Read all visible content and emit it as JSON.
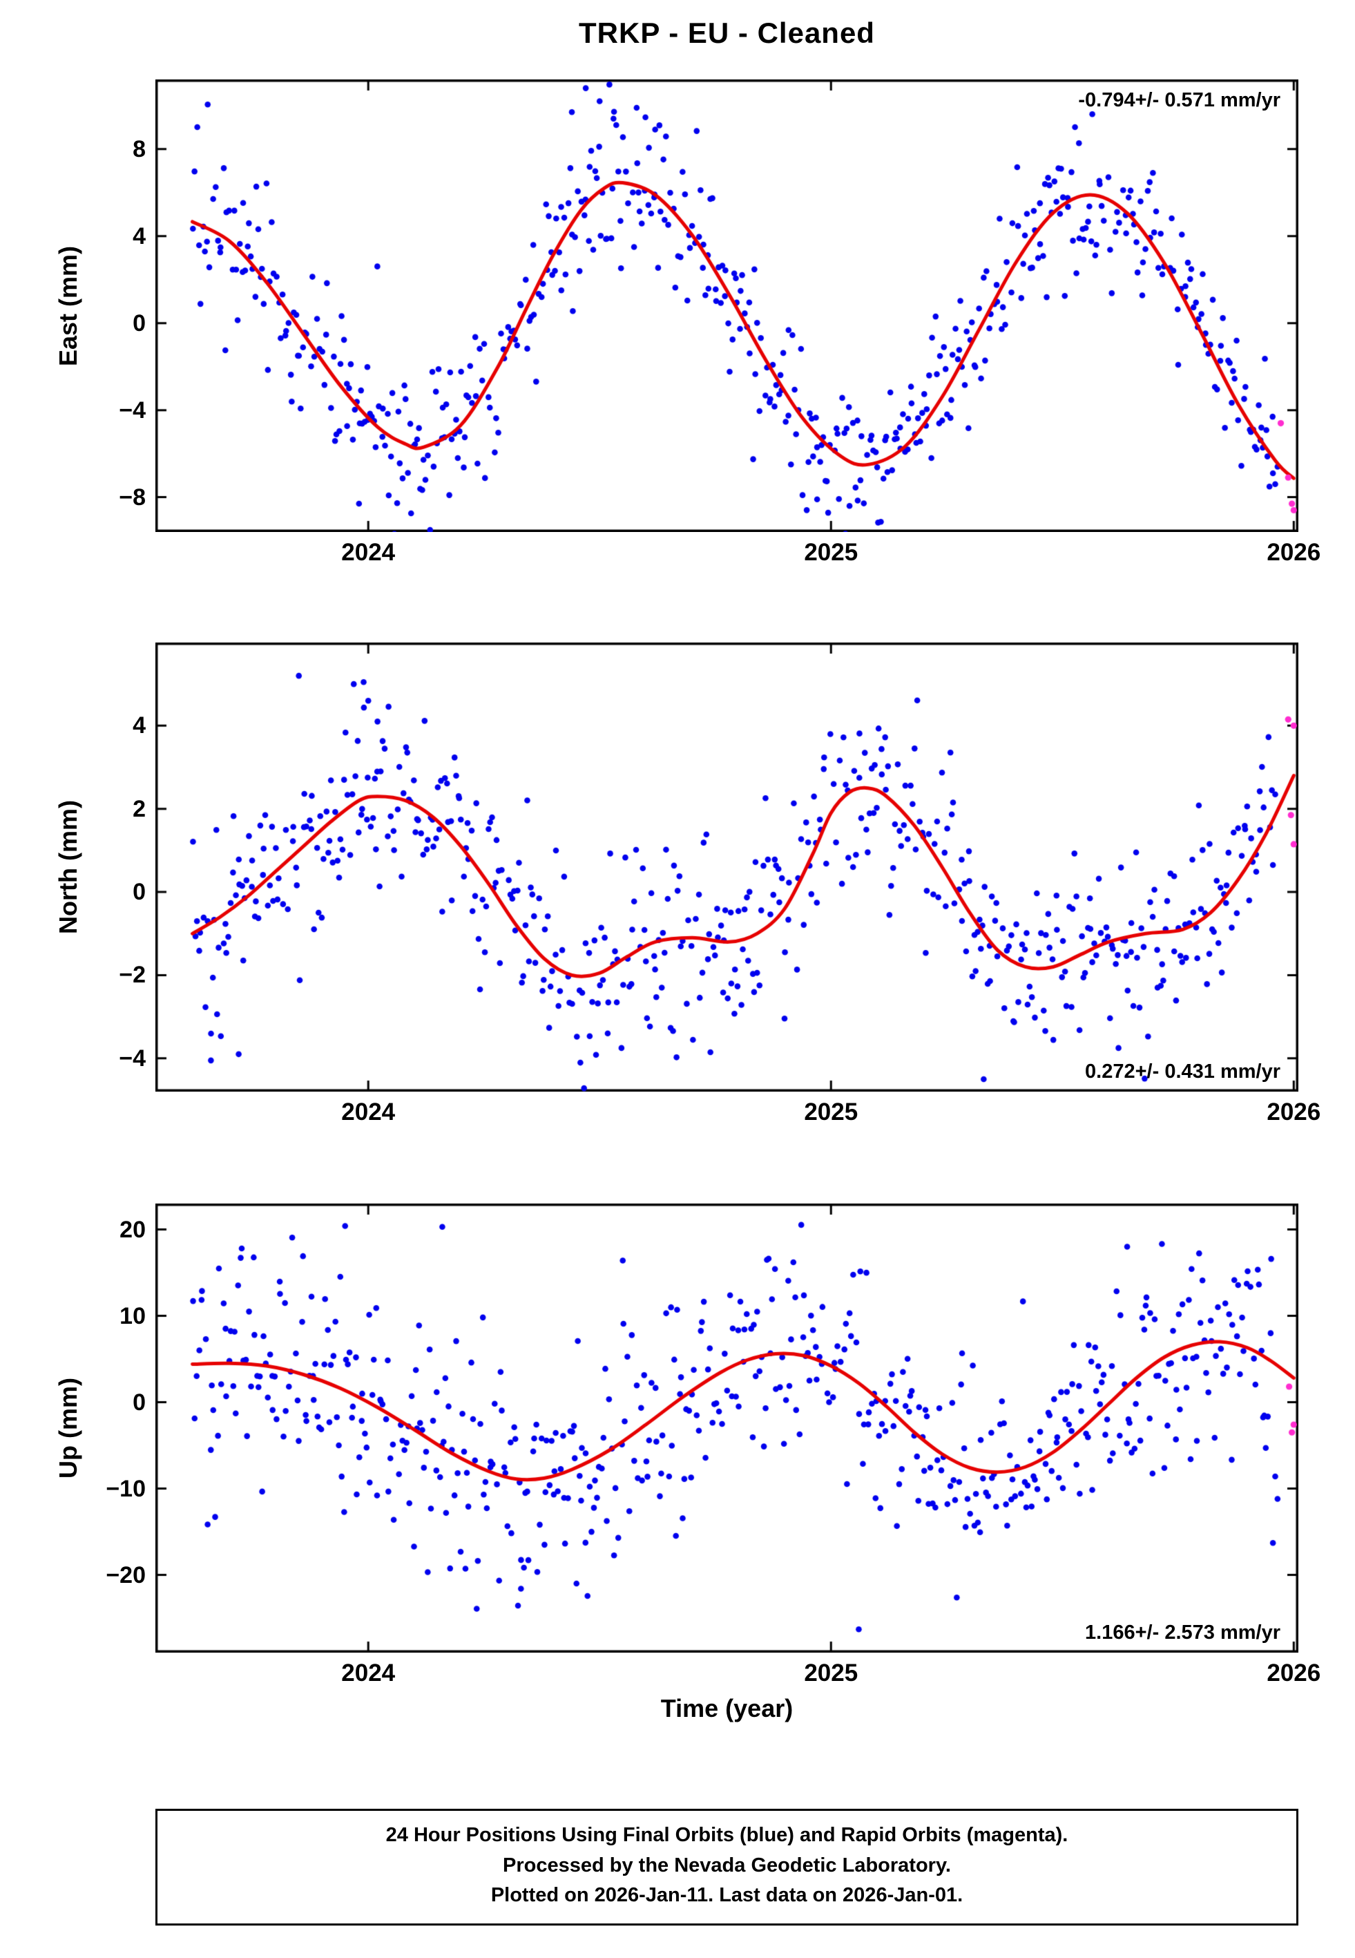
{
  "title": "TRKP  - EU - Cleaned",
  "xlabel": "Time (year)",
  "footer": {
    "line1": "24 Hour Positions Using Final Orbits (blue) and Rapid Orbits (magenta).",
    "line2": "Processed by the Nevada Geodetic Laboratory.",
    "line3": "Plotted on 2026-Jan-11. Last data on 2026-Jan-01."
  },
  "colors": {
    "final_orbit_blue": "#0000ee",
    "rapid_orbit_magenta": "#ff2dcf",
    "model_red": "#e60000",
    "frame_black": "#000000"
  },
  "chart_data": [
    {
      "type": "scatter",
      "component": "East",
      "ylabel": "East (mm)",
      "annotation": "-0.794+/- 0.571 mm/yr",
      "trend_mm_per_yr": -0.794,
      "trend_sigma": 0.571,
      "xlim": [
        2023.54,
        2026.01
      ],
      "ylim": [
        -9.6,
        11.2
      ],
      "xticks": [
        2024,
        2025,
        2026
      ],
      "yticks": [
        -8,
        -4,
        0,
        4,
        8
      ],
      "model_curve": {
        "x": [
          2023.62,
          2023.7,
          2023.78,
          2023.86,
          2023.94,
          2024.02,
          2024.08,
          2024.12,
          2024.2,
          2024.28,
          2024.34,
          2024.4,
          2024.46,
          2024.51,
          2024.55,
          2024.62,
          2024.7,
          2024.78,
          2024.86,
          2024.94,
          2025.02,
          2025.08,
          2025.16,
          2025.24,
          2025.32,
          2025.4,
          2025.48,
          2025.56,
          2025.64,
          2025.72,
          2025.8,
          2025.88,
          2025.96,
          2026.0
        ],
        "y": [
          4.66,
          3.77,
          1.88,
          -0.5,
          -2.88,
          -4.77,
          -5.55,
          -5.7,
          -4.69,
          -2.02,
          0.6,
          3.14,
          5.2,
          6.2,
          6.45,
          5.9,
          4.05,
          1.31,
          -1.73,
          -4.4,
          -6.1,
          -6.5,
          -5.67,
          -3.4,
          -0.3,
          2.8,
          5.07,
          5.9,
          5.06,
          2.77,
          -0.43,
          -3.73,
          -6.31,
          -7.13
        ]
      },
      "scatter": {
        "t_start": 2023.62,
        "t_end": 2025.955,
        "n": 580,
        "sigma": 1.65,
        "tail": 1.7,
        "seed": 101
      },
      "extra_blue": [
        [
          2024.44,
          9.7
        ],
        [
          2024.47,
          10.8
        ],
        [
          2024.5,
          10.2
        ],
        [
          2024.53,
          9.4
        ],
        [
          2024.58,
          9.9
        ],
        [
          2024.62,
          8.9
        ],
        [
          2023.98,
          -8.3
        ],
        [
          2025.04,
          -8.4
        ],
        [
          2024.97,
          -8.1
        ],
        [
          2025.93,
          -4.8
        ],
        [
          2025.955,
          -6.9
        ],
        [
          2025.96,
          -7.4
        ],
        [
          2025.965,
          -6.6
        ]
      ],
      "rapid_points": [
        [
          2025.972,
          -4.6
        ],
        [
          2025.988,
          -7.1
        ],
        [
          2025.996,
          -8.3
        ],
        [
          2026.0,
          -8.6
        ]
      ]
    },
    {
      "type": "scatter",
      "component": "North",
      "ylabel": "North (mm)",
      "annotation": "0.272+/- 0.431 mm/yr",
      "trend_mm_per_yr": 0.272,
      "trend_sigma": 0.431,
      "xlim": [
        2023.54,
        2026.01
      ],
      "ylim": [
        -4.8,
        6.0
      ],
      "xticks": [
        2024,
        2025,
        2026
      ],
      "yticks": [
        -4,
        -2,
        0,
        2,
        4
      ],
      "model_curve": {
        "x": [
          2023.62,
          2023.68,
          2023.74,
          2023.8,
          2023.86,
          2023.92,
          2023.98,
          2024.02,
          2024.08,
          2024.14,
          2024.2,
          2024.26,
          2024.32,
          2024.38,
          2024.44,
          2024.5,
          2024.56,
          2024.62,
          2024.7,
          2024.78,
          2024.84,
          2024.9,
          2024.96,
          2025.0,
          2025.04,
          2025.08,
          2025.12,
          2025.18,
          2025.24,
          2025.3,
          2025.36,
          2025.42,
          2025.48,
          2025.54,
          2025.6,
          2025.68,
          2025.76,
          2025.82,
          2025.88,
          2025.94,
          2026.0
        ],
        "y": [
          -1.0,
          -0.6,
          -0.1,
          0.5,
          1.1,
          1.7,
          2.2,
          2.3,
          2.2,
          1.8,
          1.1,
          0.2,
          -0.8,
          -1.6,
          -2.0,
          -1.95,
          -1.55,
          -1.2,
          -1.1,
          -1.2,
          -1.0,
          -0.4,
          0.9,
          1.9,
          2.4,
          2.5,
          2.3,
          1.6,
          0.6,
          -0.5,
          -1.4,
          -1.8,
          -1.8,
          -1.5,
          -1.2,
          -1.0,
          -0.9,
          -0.5,
          0.3,
          1.4,
          2.8
        ]
      },
      "scatter": {
        "t_start": 2023.62,
        "t_end": 2025.955,
        "n": 580,
        "sigma": 1.15,
        "tail": 1.55,
        "seed": 202
      },
      "extra_blue": [
        [
          2023.85,
          5.2
        ],
        [
          2023.99,
          5.05
        ],
        [
          2024.0,
          4.6
        ],
        [
          2025.33,
          -4.5
        ],
        [
          2023.66,
          -4.05
        ],
        [
          2023.72,
          -3.9
        ],
        [
          2025.96,
          2.35
        ],
        [
          2025.955,
          0.65
        ],
        [
          2024.02,
          4.1
        ]
      ],
      "rapid_points": [
        [
          2025.988,
          4.15
        ],
        [
          2026.0,
          4.0
        ],
        [
          2025.994,
          1.85
        ],
        [
          2026.0,
          1.15
        ]
      ]
    },
    {
      "type": "scatter",
      "component": "Up",
      "ylabel": "Up (mm)",
      "annotation": "1.166+/- 2.573 mm/yr",
      "trend_mm_per_yr": 1.166,
      "trend_sigma": 2.573,
      "xlim": [
        2023.54,
        2026.01
      ],
      "ylim": [
        -29,
        23
      ],
      "xticks": [
        2024,
        2025,
        2026
      ],
      "yticks": [
        -20,
        -10,
        0,
        10,
        20
      ],
      "model_curve": {
        "x": [
          2023.62,
          2023.7,
          2023.78,
          2023.86,
          2023.94,
          2024.02,
          2024.1,
          2024.18,
          2024.26,
          2024.32,
          2024.38,
          2024.44,
          2024.52,
          2024.6,
          2024.68,
          2024.76,
          2024.82,
          2024.88,
          2024.94,
          2025.0,
          2025.06,
          2025.12,
          2025.18,
          2025.24,
          2025.3,
          2025.36,
          2025.42,
          2025.48,
          2025.54,
          2025.6,
          2025.66,
          2025.72,
          2025.78,
          2025.84,
          2025.9,
          2025.95,
          2026.0
        ],
        "y": [
          4.4,
          4.5,
          4.2,
          3.2,
          1.6,
          -0.6,
          -3.2,
          -5.9,
          -8.0,
          -8.9,
          -8.8,
          -7.8,
          -5.6,
          -2.6,
          0.6,
          3.4,
          4.9,
          5.6,
          5.4,
          4.2,
          2.2,
          -0.5,
          -3.5,
          -6.0,
          -7.6,
          -8.1,
          -7.5,
          -5.8,
          -3.2,
          -0.2,
          2.8,
          5.2,
          6.6,
          7.0,
          6.3,
          4.8,
          2.8
        ]
      },
      "scatter": {
        "t_start": 2023.62,
        "t_end": 2025.955,
        "n": 580,
        "sigma": 6.2,
        "tail": 1.6,
        "seed": 303
      },
      "extra_blue": [
        [
          2025.06,
          -26.3
        ],
        [
          2023.95,
          20.4
        ],
        [
          2024.16,
          20.3
        ],
        [
          2024.33,
          -21.6
        ],
        [
          2024.45,
          -21.0
        ],
        [
          2025.64,
          18.0
        ],
        [
          2024.55,
          16.4
        ],
        [
          2025.955,
          -16.3
        ],
        [
          2025.96,
          -8.6
        ],
        [
          2025.965,
          -11.2
        ]
      ],
      "rapid_points": [
        [
          2025.99,
          1.8
        ],
        [
          2026.0,
          -2.6
        ],
        [
          2025.996,
          -3.5
        ]
      ]
    }
  ]
}
